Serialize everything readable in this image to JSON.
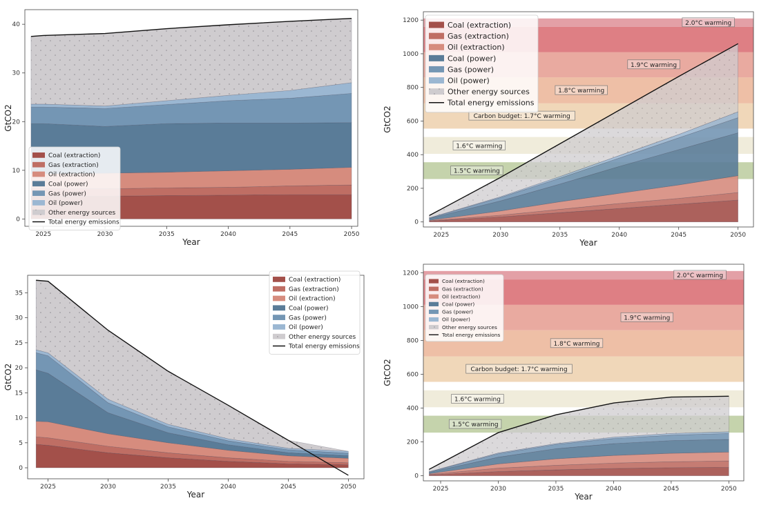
{
  "colors": {
    "coal_extraction": "#a3504a",
    "gas_extraction": "#bf6e64",
    "oil_extraction": "#d68c7e",
    "coal_power": "#5a7c98",
    "gas_power": "#7496b4",
    "oil_power": "#9bb7d2",
    "other": "#cfcccf",
    "total": "#111111"
  },
  "chart_data": [
    {
      "type": "area",
      "xlabel": "Year",
      "ylabel": "GtCO2",
      "xlim": [
        2023.5,
        2050.5
      ],
      "ylim": [
        -1.5,
        43
      ],
      "xticks": [
        2025,
        2030,
        2035,
        2040,
        2045,
        2050
      ],
      "yticks": [
        0,
        10,
        20,
        30,
        40
      ],
      "x": [
        2024,
        2025,
        2030,
        2035,
        2040,
        2045,
        2050
      ],
      "stack_order": [
        "Coal (extraction)",
        "Gas (extraction)",
        "Oil (extraction)",
        "Coal (power)",
        "Gas (power)",
        "Oil (power)",
        "Other energy sources"
      ],
      "cumulative": [
        [
          4.7,
          4.7,
          4.7,
          4.8,
          4.9,
          5.0,
          5.0
        ],
        [
          6.2,
          6.2,
          6.2,
          6.4,
          6.5,
          6.8,
          7.0
        ],
        [
          9.3,
          9.3,
          9.4,
          9.6,
          9.9,
          10.2,
          10.6
        ],
        [
          19.6,
          19.6,
          19.0,
          19.6,
          19.7,
          19.7,
          19.8
        ],
        [
          23.0,
          23.0,
          22.7,
          23.5,
          24.3,
          24.8,
          25.8
        ],
        [
          23.6,
          23.6,
          23.2,
          24.3,
          25.4,
          26.4,
          28.0
        ],
        [
          37.5,
          37.7,
          38.1,
          39.1,
          39.9,
          40.6,
          41.2
        ]
      ],
      "total": [
        37.5,
        37.7,
        38.1,
        39.1,
        39.9,
        40.6,
        41.2
      ],
      "legend": {
        "placement": "lower-left",
        "entries": [
          "Coal (extraction)",
          "Gas (extraction)",
          "Oil (extraction)",
          "Coal (power)",
          "Gas (power)",
          "Oil (power)",
          "Other energy sources",
          "Total energy emissions"
        ]
      }
    },
    {
      "type": "area",
      "xlabel": "Year",
      "ylabel": "GtCO2",
      "xlim": [
        2023.5,
        2051.3
      ],
      "ylim": [
        -30,
        1250
      ],
      "xticks": [
        2025,
        2030,
        2035,
        2040,
        2045,
        2050
      ],
      "yticks": [
        0,
        200,
        400,
        600,
        800,
        1000,
        1200
      ],
      "x": [
        2024,
        2030,
        2035,
        2040,
        2045,
        2050
      ],
      "stack_order": [
        "Coal (extraction)",
        "Gas (extraction)",
        "Oil (extraction)",
        "Coal (power)",
        "Gas (power)",
        "Oil (power)",
        "Other energy sources"
      ],
      "cumulative": [
        [
          5,
          30,
          55,
          80,
          105,
          130
        ],
        [
          7,
          40,
          75,
          110,
          140,
          175
        ],
        [
          10,
          65,
          120,
          170,
          220,
          275
        ],
        [
          20,
          125,
          225,
          330,
          430,
          530
        ],
        [
          23,
          145,
          260,
          380,
          500,
          620
        ],
        [
          24,
          150,
          270,
          395,
          520,
          655
        ],
        [
          38,
          265,
          465,
          665,
          865,
          1060
        ]
      ],
      "total": [
        38,
        265,
        465,
        665,
        865,
        1060
      ],
      "bands": [
        {
          "label": "1.5°C warming",
          "low": 255,
          "high": 355,
          "color": "#c5d3ac"
        },
        {
          "label": "1.6°C warming",
          "low": 405,
          "high": 505,
          "color": "#f0ecdb"
        },
        {
          "label": "Carbon budget: 1.7°C warming",
          "low": 555,
          "high": 705,
          "color": "#f0d7b9"
        },
        {
          "label": "1.8°C warming",
          "low": 705,
          "high": 860,
          "color": "#eebfa6"
        },
        {
          "label": "1.9°C warming",
          "low": 860,
          "high": 1010,
          "color": "#e9aaa0"
        },
        {
          "label": "",
          "low": 1010,
          "high": 1160,
          "color": "#de7f84"
        },
        {
          "label": "2.0°C warming",
          "low": 1160,
          "high": 1210,
          "color": "#e3a0a6"
        }
      ],
      "band_label_positions": {
        "1.5°C warming": 304,
        "1.6°C warming": 453,
        "Carbon budget: 1.7°C warming": 630,
        "1.8°C warming": 782,
        "1.9°C warming": 935,
        "2.0°C warming": 1185
      },
      "legend": {
        "placement": "upper-left",
        "entries": [
          "Coal (extraction)",
          "Gas (extraction)",
          "Oil (extraction)",
          "Coal (power)",
          "Gas (power)",
          "Oil (power)",
          "Other energy sources",
          "Total energy emissions"
        ]
      }
    },
    {
      "type": "area",
      "xlabel": "Year",
      "ylabel": "GtCO2",
      "xlim": [
        2023.3,
        2051.3
      ],
      "ylim": [
        -2.2,
        38.5
      ],
      "xticks": [
        2025,
        2030,
        2035,
        2040,
        2045,
        2050
      ],
      "yticks": [
        0,
        5,
        10,
        15,
        20,
        25,
        30,
        35
      ],
      "x": [
        2024,
        2025,
        2030,
        2035,
        2040,
        2045,
        2050
      ],
      "stack_order": [
        "Coal (extraction)",
        "Gas (extraction)",
        "Oil (extraction)",
        "Coal (power)",
        "Gas (power)",
        "Oil (power)",
        "Other energy sources"
      ],
      "cumulative": [
        [
          4.7,
          4.5,
          3.0,
          2.0,
          1.3,
          0.8,
          0.6
        ],
        [
          6.2,
          6.0,
          4.3,
          3.0,
          2.0,
          1.3,
          1.0
        ],
        [
          9.3,
          9.2,
          6.8,
          5.0,
          3.5,
          2.4,
          1.9
        ],
        [
          19.6,
          18.9,
          11.0,
          7.0,
          4.6,
          3.0,
          2.4
        ],
        [
          23.0,
          22.4,
          13.0,
          8.2,
          5.4,
          3.6,
          2.9
        ],
        [
          23.6,
          23.0,
          13.7,
          8.7,
          5.8,
          3.9,
          3.3
        ],
        [
          37.5,
          37.3,
          27.5,
          19.3,
          12.5,
          5.5,
          3.3
        ]
      ],
      "total": [
        37.5,
        37.3,
        27.5,
        19.3,
        12.5,
        5.5,
        -1.5
      ],
      "legend": {
        "placement": "upper-right",
        "entries": [
          "Coal (extraction)",
          "Gas (extraction)",
          "Oil (extraction)",
          "Coal (power)",
          "Gas (power)",
          "Oil (power)",
          "Other energy sources",
          "Total energy emissions"
        ]
      }
    },
    {
      "type": "area",
      "xlabel": "Year",
      "ylabel": "GtCO2",
      "xlim": [
        2023.5,
        2051.3
      ],
      "ylim": [
        -30,
        1250
      ],
      "xticks": [
        2025,
        2030,
        2035,
        2040,
        2045,
        2050
      ],
      "yticks": [
        0,
        200,
        400,
        600,
        800,
        1000,
        1200
      ],
      "x": [
        2024,
        2030,
        2035,
        2040,
        2045,
        2050
      ],
      "stack_order": [
        "Coal (extraction)",
        "Gas (extraction)",
        "Oil (extraction)",
        "Coal (power)",
        "Gas (power)",
        "Oil (power)",
        "Other energy sources"
      ],
      "cumulative": [
        [
          5,
          25,
          35,
          43,
          48,
          50
        ],
        [
          8,
          45,
          62,
          75,
          83,
          88
        ],
        [
          12,
          70,
          100,
          120,
          133,
          140
        ],
        [
          20,
          110,
          160,
          190,
          208,
          215
        ],
        [
          23,
          130,
          185,
          220,
          240,
          250
        ],
        [
          24,
          135,
          190,
          228,
          250,
          260
        ],
        [
          38,
          255,
          360,
          430,
          465,
          470
        ]
      ],
      "total": [
        38,
        255,
        360,
        430,
        465,
        470
      ],
      "bands": [
        {
          "label": "1.5°C warming",
          "low": 255,
          "high": 355,
          "color": "#c5d3ac"
        },
        {
          "label": "1.6°C warming",
          "low": 405,
          "high": 505,
          "color": "#f0ecdb"
        },
        {
          "label": "Carbon budget: 1.7°C warming",
          "low": 555,
          "high": 705,
          "color": "#f0d7b9"
        },
        {
          "label": "1.8°C warming",
          "low": 705,
          "high": 860,
          "color": "#eebfa6"
        },
        {
          "label": "1.9°C warming",
          "low": 860,
          "high": 1010,
          "color": "#e9aaa0"
        },
        {
          "label": "",
          "low": 1010,
          "high": 1160,
          "color": "#de7f84"
        },
        {
          "label": "2.0°C warming",
          "low": 1160,
          "high": 1210,
          "color": "#e3a0a6"
        }
      ],
      "band_label_positions": {
        "1.5°C warming": 304,
        "1.6°C warming": 453,
        "Carbon budget: 1.7°C warming": 630,
        "1.8°C warming": 782,
        "1.9°C warming": 935,
        "2.0°C warming": 1185
      },
      "legend": {
        "placement": "upper-left",
        "entries": [
          "Coal (extraction)",
          "Gas (extraction)",
          "Oil (extraction)",
          "Coal (power)",
          "Gas (power)",
          "Oil (power)",
          "Other energy sources",
          "Total energy emissions"
        ]
      }
    }
  ]
}
